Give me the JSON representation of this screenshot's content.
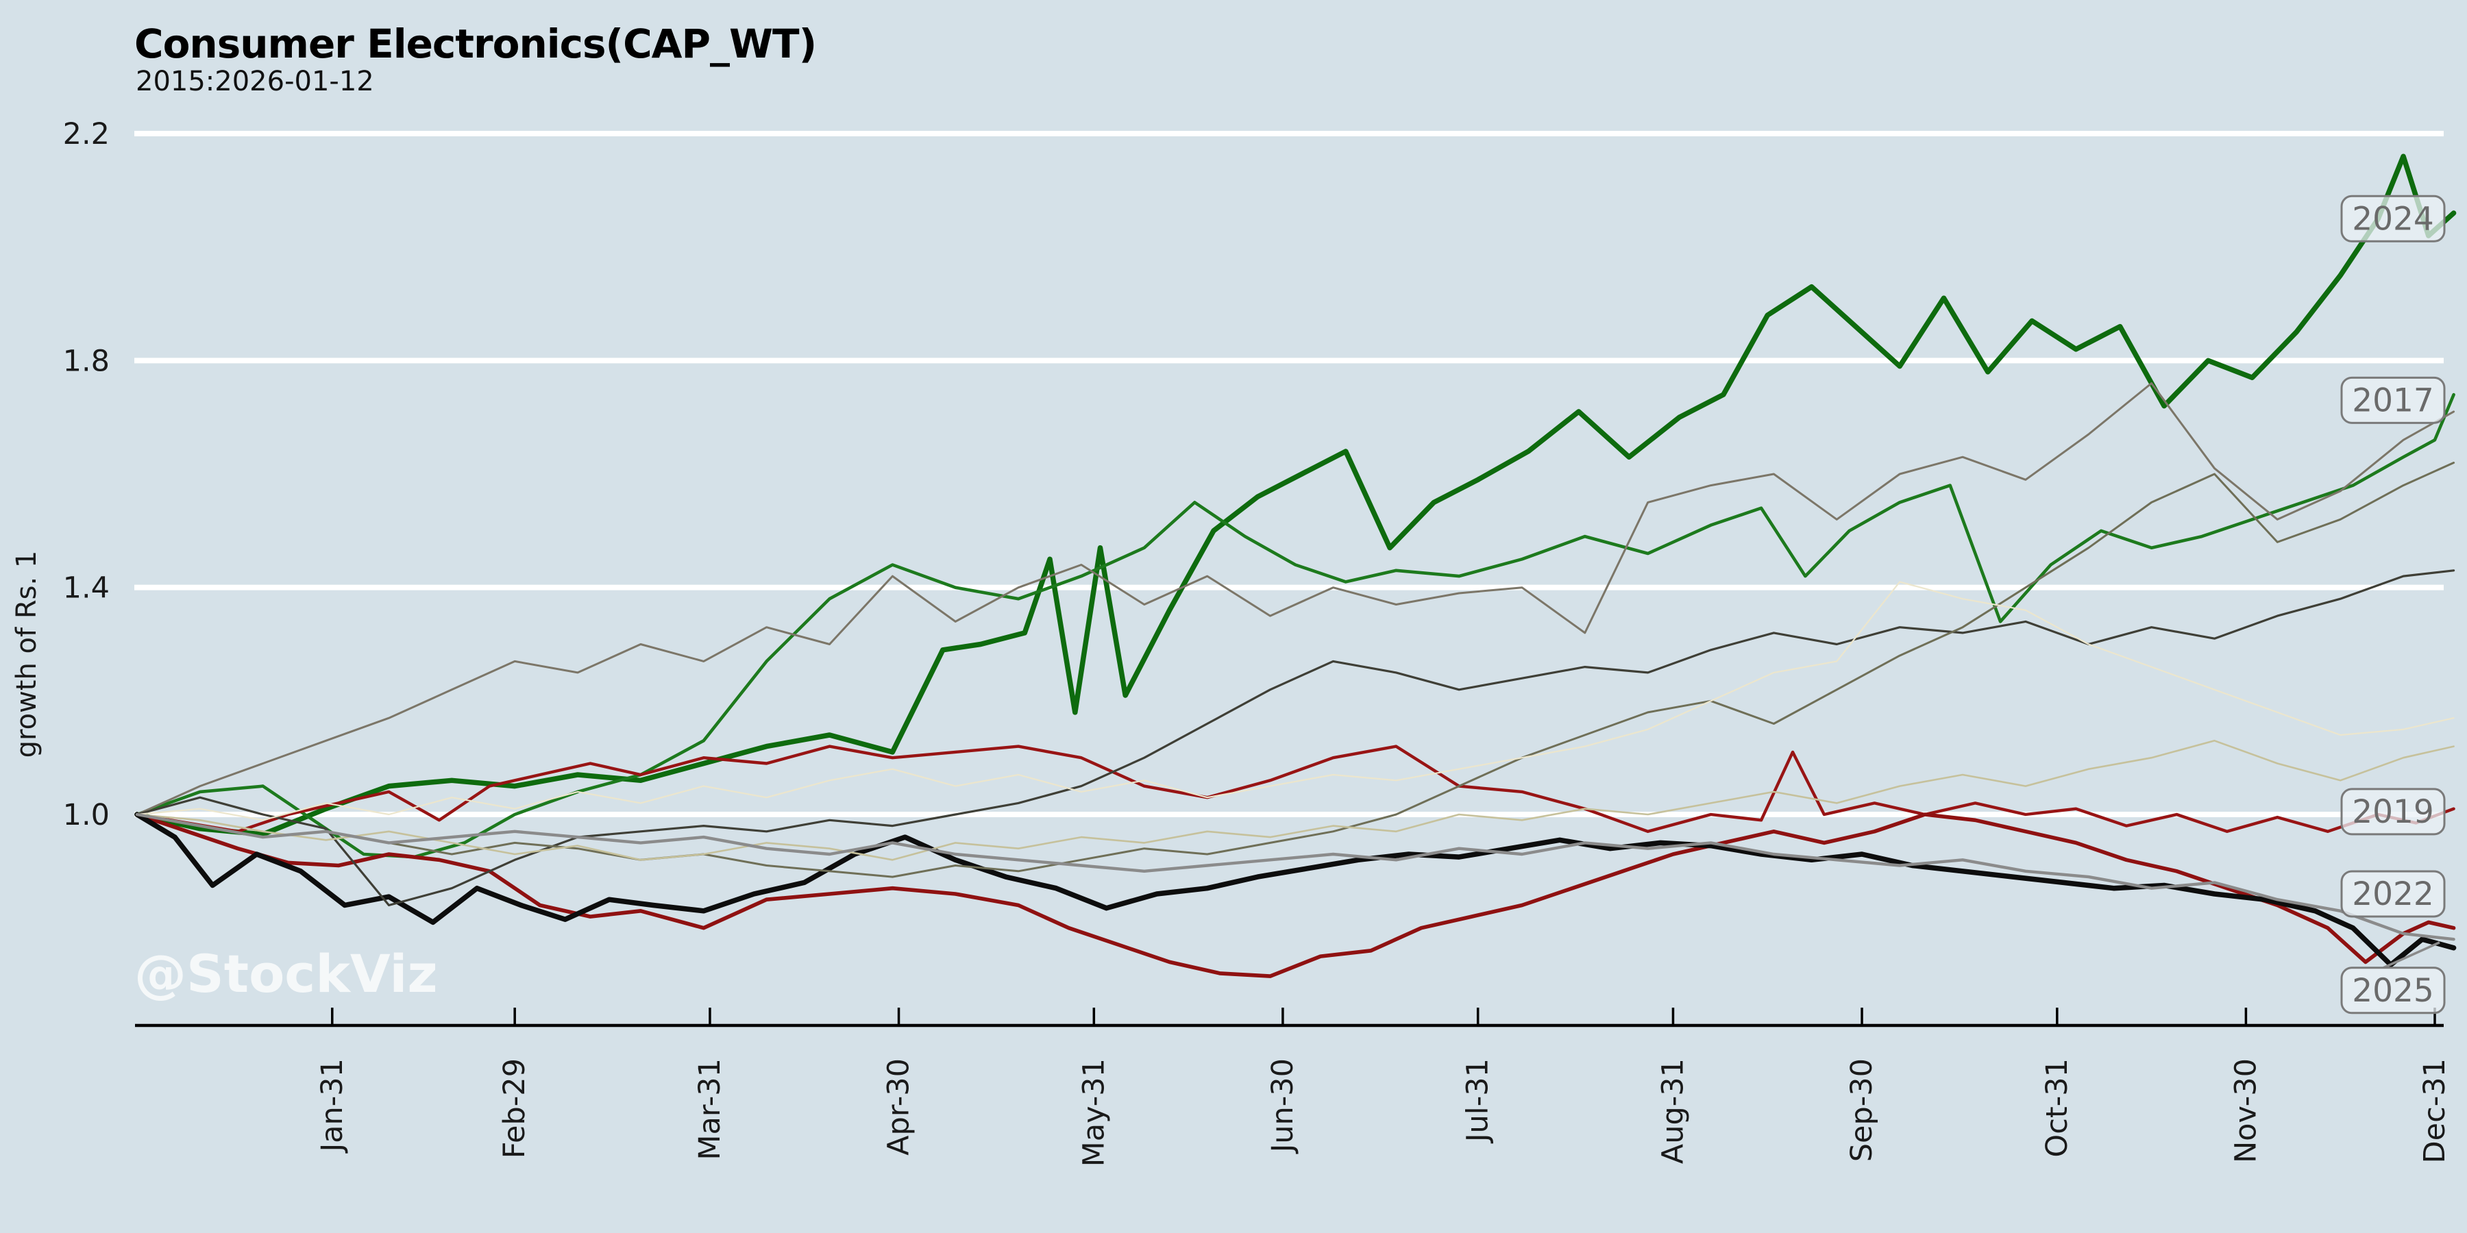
{
  "header": {
    "title": "Consumer Electronics(CAP_WT)",
    "subtitle": "2015:2026-01-12"
  },
  "watermark": "@StockViz",
  "colors": {
    "background": "#d5e1e8",
    "gridline": "#ffffff",
    "axis": "#000000",
    "title_text": "#000000",
    "tick_text": "#1a1a1a",
    "year_label_text": "#6a6a6a",
    "year_label_border": "#7a7a7a",
    "year_label_fill": "rgba(233,240,245,0.75)",
    "watermark_text": "#ffffff",
    "green_2024": "#0e6b0e",
    "green_2017": "#1d7a1d",
    "red_2019": "#981414",
    "red_2022": "#8f1111",
    "black_2025": "#0d0d0d"
  },
  "chart_data": {
    "type": "line",
    "title": "Consumer Electronics(CAP_WT)",
    "subtitle": "2015:2026-01-12",
    "xlabel": "",
    "ylabel": "growth of Rs. 1",
    "x_unit": "day-of-year",
    "ylim": [
      0.63,
      2.23
    ],
    "grid": "horizontal-white",
    "legend_position": "right-edge-labels",
    "y_ticks": [
      {
        "v": 2.2,
        "label": "2.2"
      },
      {
        "v": 1.8,
        "label": "1.8"
      },
      {
        "v": 1.4,
        "label": "1.4"
      },
      {
        "v": 1.0,
        "label": "1.0"
      }
    ],
    "x_ticks": [
      {
        "day": 31,
        "label": "Jan-31"
      },
      {
        "day": 60,
        "label": "Feb-29"
      },
      {
        "day": 91,
        "label": "Mar-31"
      },
      {
        "day": 121,
        "label": "Apr-30"
      },
      {
        "day": 152,
        "label": "May-31"
      },
      {
        "day": 182,
        "label": "Jun-30"
      },
      {
        "day": 213,
        "label": "Jul-31"
      },
      {
        "day": 244,
        "label": "Aug-31"
      },
      {
        "day": 274,
        "label": "Sep-30"
      },
      {
        "day": 305,
        "label": "Oct-31"
      },
      {
        "day": 335,
        "label": "Nov-30"
      },
      {
        "day": 365,
        "label": "Dec-31"
      }
    ],
    "series": [
      {
        "id": "2024",
        "label": "2024",
        "color": "#0e6b0e",
        "width": 7.5,
        "end_value": 2.06,
        "label_v": 2.05,
        "d": [
          0,
          10,
          20,
          30,
          40,
          50,
          60,
          70,
          80,
          90,
          100,
          110,
          120,
          128,
          134,
          141,
          145,
          149,
          153,
          157,
          164,
          171,
          178,
          185,
          192,
          199,
          206,
          213,
          221,
          229,
          237,
          245,
          252,
          259,
          266,
          273,
          280,
          287,
          294,
          301,
          308,
          315,
          322,
          329,
          336,
          343,
          350,
          356,
          360,
          364,
          368
        ],
        "v": [
          1.0,
          0.975,
          0.965,
          1.01,
          1.05,
          1.06,
          1.05,
          1.07,
          1.06,
          1.09,
          1.12,
          1.14,
          1.11,
          1.29,
          1.3,
          1.32,
          1.45,
          1.18,
          1.47,
          1.21,
          1.36,
          1.5,
          1.56,
          1.6,
          1.64,
          1.47,
          1.55,
          1.59,
          1.64,
          1.71,
          1.63,
          1.7,
          1.74,
          1.88,
          1.93,
          1.86,
          1.79,
          1.91,
          1.78,
          1.87,
          1.82,
          1.86,
          1.72,
          1.8,
          1.77,
          1.85,
          1.95,
          2.05,
          2.16,
          2.02,
          2.06
        ]
      },
      {
        "id": "2017",
        "label": "2017",
        "color": "#1d7a1d",
        "width": 4.6,
        "end_value": 1.74,
        "label_v": 1.73,
        "d": [
          0,
          10,
          20,
          28,
          36,
          44,
          52,
          60,
          70,
          80,
          90,
          100,
          110,
          120,
          130,
          140,
          150,
          160,
          168,
          176,
          184,
          192,
          200,
          210,
          220,
          230,
          240,
          250,
          258,
          265,
          272,
          280,
          288,
          296,
          304,
          312,
          320,
          328,
          336,
          344,
          352,
          360,
          365,
          368
        ],
        "v": [
          1.0,
          1.04,
          1.05,
          0.99,
          0.93,
          0.925,
          0.95,
          1.0,
          1.04,
          1.07,
          1.13,
          1.27,
          1.38,
          1.44,
          1.4,
          1.38,
          1.42,
          1.47,
          1.55,
          1.49,
          1.44,
          1.41,
          1.43,
          1.42,
          1.45,
          1.49,
          1.46,
          1.51,
          1.54,
          1.42,
          1.5,
          1.55,
          1.58,
          1.34,
          1.44,
          1.5,
          1.47,
          1.49,
          1.52,
          1.55,
          1.58,
          1.63,
          1.66,
          1.74
        ]
      },
      {
        "id": "2019",
        "label": "2019",
        "color": "#981414",
        "width": 4.4,
        "end_value": 1.01,
        "label_v": 1.005,
        "d": [
          0,
          8,
          16,
          24,
          32,
          40,
          48,
          56,
          64,
          72,
          80,
          90,
          100,
          110,
          120,
          130,
          140,
          150,
          160,
          170,
          180,
          190,
          200,
          210,
          220,
          230,
          240,
          250,
          258,
          263,
          268,
          276,
          284,
          292,
          300,
          308,
          316,
          324,
          332,
          340,
          348,
          356,
          362,
          368
        ],
        "v": [
          1.0,
          0.985,
          0.97,
          1.0,
          1.02,
          1.04,
          0.99,
          1.05,
          1.07,
          1.09,
          1.07,
          1.1,
          1.09,
          1.12,
          1.1,
          1.11,
          1.12,
          1.1,
          1.05,
          1.03,
          1.06,
          1.1,
          1.12,
          1.05,
          1.04,
          1.01,
          0.97,
          1.0,
          0.99,
          1.11,
          1.0,
          1.02,
          1.0,
          1.02,
          1.0,
          1.01,
          0.98,
          1.0,
          0.97,
          0.995,
          0.97,
          1.0,
          0.985,
          1.01
        ]
      },
      {
        "id": "2022",
        "label": "2022",
        "color": "#8f1111",
        "width": 5.6,
        "end_value": 0.8,
        "label_v": 0.86,
        "d": [
          0,
          8,
          16,
          24,
          32,
          40,
          48,
          56,
          64,
          72,
          80,
          90,
          100,
          110,
          120,
          130,
          140,
          148,
          156,
          164,
          172,
          180,
          188,
          196,
          204,
          212,
          220,
          228,
          236,
          244,
          252,
          260,
          268,
          276,
          284,
          292,
          300,
          308,
          316,
          324,
          332,
          340,
          348,
          354,
          360,
          364,
          368
        ],
        "v": [
          1.0,
          0.97,
          0.94,
          0.915,
          0.91,
          0.93,
          0.92,
          0.9,
          0.84,
          0.82,
          0.83,
          0.8,
          0.85,
          0.86,
          0.87,
          0.86,
          0.84,
          0.8,
          0.77,
          0.74,
          0.72,
          0.715,
          0.75,
          0.76,
          0.8,
          0.82,
          0.84,
          0.87,
          0.9,
          0.93,
          0.95,
          0.97,
          0.95,
          0.97,
          1.0,
          0.99,
          0.97,
          0.95,
          0.92,
          0.9,
          0.87,
          0.84,
          0.8,
          0.74,
          0.79,
          0.81,
          0.8
        ]
      },
      {
        "id": "2025",
        "label": "2025",
        "color": "#0d0d0d",
        "width": 7.5,
        "end_value": 0.765,
        "label_v": 0.69,
        "connector": true,
        "d": [
          0,
          6,
          12,
          19,
          26,
          33,
          40,
          47,
          54,
          61,
          68,
          75,
          82,
          90,
          98,
          106,
          114,
          122,
          130,
          138,
          146,
          154,
          162,
          170,
          178,
          186,
          194,
          202,
          210,
          218,
          226,
          234,
          242,
          250,
          258,
          266,
          274,
          282,
          290,
          298,
          306,
          314,
          322,
          330,
          338,
          346,
          352,
          358,
          363,
          368
        ],
        "v": [
          1.0,
          0.96,
          0.875,
          0.93,
          0.9,
          0.84,
          0.855,
          0.81,
          0.87,
          0.84,
          0.815,
          0.85,
          0.84,
          0.83,
          0.86,
          0.88,
          0.93,
          0.96,
          0.92,
          0.89,
          0.87,
          0.835,
          0.86,
          0.87,
          0.89,
          0.905,
          0.92,
          0.93,
          0.925,
          0.94,
          0.955,
          0.94,
          0.95,
          0.945,
          0.93,
          0.92,
          0.93,
          0.91,
          0.9,
          0.89,
          0.88,
          0.87,
          0.875,
          0.86,
          0.85,
          0.83,
          0.8,
          0.735,
          0.78,
          0.765
        ]
      },
      {
        "id": "unlabeled-a",
        "label": null,
        "color": "#7c7668",
        "width": 3.0,
        "end_value": 1.71,
        "d": [
          0,
          10,
          20,
          30,
          40,
          50,
          60,
          70,
          80,
          90,
          100,
          110,
          120,
          130,
          140,
          150,
          160,
          170,
          180,
          190,
          200,
          210,
          220,
          230,
          240,
          250,
          260,
          270,
          280,
          290,
          300,
          310,
          320,
          330,
          340,
          350,
          360,
          368
        ],
        "v": [
          1.0,
          1.05,
          1.09,
          1.13,
          1.17,
          1.22,
          1.27,
          1.25,
          1.3,
          1.27,
          1.33,
          1.3,
          1.42,
          1.34,
          1.4,
          1.44,
          1.37,
          1.42,
          1.35,
          1.4,
          1.37,
          1.39,
          1.4,
          1.32,
          1.55,
          1.58,
          1.6,
          1.52,
          1.6,
          1.63,
          1.59,
          1.67,
          1.76,
          1.61,
          1.52,
          1.57,
          1.66,
          1.71
        ]
      },
      {
        "id": "unlabeled-b",
        "label": null,
        "color": "#3f3f36",
        "width": 3.2,
        "end_value": 1.43,
        "d": [
          0,
          10,
          20,
          30,
          40,
          50,
          60,
          70,
          80,
          90,
          100,
          110,
          120,
          130,
          140,
          150,
          160,
          170,
          180,
          190,
          200,
          210,
          220,
          230,
          240,
          250,
          260,
          270,
          280,
          290,
          300,
          310,
          320,
          330,
          340,
          350,
          360,
          368
        ],
        "v": [
          1.0,
          1.03,
          1.0,
          0.975,
          0.84,
          0.87,
          0.92,
          0.96,
          0.97,
          0.98,
          0.97,
          0.99,
          0.98,
          1.0,
          1.02,
          1.05,
          1.1,
          1.16,
          1.22,
          1.27,
          1.25,
          1.22,
          1.24,
          1.26,
          1.25,
          1.29,
          1.32,
          1.3,
          1.33,
          1.32,
          1.34,
          1.3,
          1.33,
          1.31,
          1.35,
          1.38,
          1.42,
          1.43
        ]
      },
      {
        "id": "unlabeled-c",
        "label": null,
        "color": "#6f6f57",
        "width": 3.0,
        "end_value": 1.62,
        "d": [
          0,
          10,
          20,
          30,
          40,
          50,
          60,
          70,
          80,
          90,
          100,
          110,
          120,
          130,
          140,
          150,
          160,
          170,
          180,
          190,
          200,
          210,
          220,
          230,
          240,
          250,
          260,
          270,
          280,
          290,
          300,
          310,
          320,
          330,
          340,
          350,
          360,
          368
        ],
        "v": [
          1.0,
          0.98,
          0.96,
          0.97,
          0.95,
          0.93,
          0.95,
          0.94,
          0.92,
          0.93,
          0.91,
          0.9,
          0.89,
          0.91,
          0.9,
          0.92,
          0.94,
          0.93,
          0.95,
          0.97,
          1.0,
          1.05,
          1.1,
          1.14,
          1.18,
          1.2,
          1.16,
          1.22,
          1.28,
          1.33,
          1.4,
          1.47,
          1.55,
          1.6,
          1.48,
          1.52,
          1.58,
          1.62
        ]
      },
      {
        "id": "unlabeled-d",
        "label": null,
        "color": "#c6c19b",
        "width": 2.6,
        "end_value": 1.12,
        "d": [
          0,
          10,
          20,
          30,
          40,
          50,
          60,
          70,
          80,
          90,
          100,
          110,
          120,
          130,
          140,
          150,
          160,
          170,
          180,
          190,
          200,
          210,
          220,
          230,
          240,
          250,
          260,
          270,
          280,
          290,
          300,
          310,
          320,
          330,
          340,
          350,
          360,
          368
        ],
        "v": [
          1.0,
          0.99,
          0.97,
          0.955,
          0.97,
          0.95,
          0.93,
          0.945,
          0.92,
          0.93,
          0.95,
          0.94,
          0.92,
          0.95,
          0.94,
          0.96,
          0.95,
          0.97,
          0.96,
          0.98,
          0.97,
          1.0,
          0.99,
          1.01,
          1.0,
          1.02,
          1.04,
          1.02,
          1.05,
          1.07,
          1.05,
          1.08,
          1.1,
          1.13,
          1.09,
          1.06,
          1.1,
          1.12
        ]
      },
      {
        "id": "unlabeled-e",
        "label": null,
        "color": "#ece6cd",
        "width": 2.2,
        "end_value": 1.17,
        "d": [
          0,
          10,
          20,
          30,
          40,
          50,
          60,
          70,
          80,
          90,
          100,
          110,
          120,
          130,
          140,
          150,
          160,
          170,
          180,
          190,
          200,
          210,
          220,
          230,
          240,
          250,
          260,
          270,
          280,
          290,
          300,
          310,
          320,
          330,
          340,
          350,
          360,
          368
        ],
        "v": [
          1.0,
          1.01,
          0.99,
          1.02,
          1.0,
          1.03,
          1.01,
          1.04,
          1.02,
          1.05,
          1.03,
          1.06,
          1.08,
          1.05,
          1.07,
          1.04,
          1.06,
          1.03,
          1.05,
          1.07,
          1.06,
          1.08,
          1.1,
          1.12,
          1.15,
          1.2,
          1.25,
          1.27,
          1.41,
          1.38,
          1.36,
          1.3,
          1.26,
          1.22,
          1.18,
          1.14,
          1.15,
          1.17
        ]
      },
      {
        "id": "unlabeled-f",
        "label": null,
        "color": "#8b8b8b",
        "width": 4.4,
        "end_value": 0.78,
        "d": [
          0,
          10,
          20,
          30,
          40,
          50,
          60,
          70,
          80,
          90,
          100,
          110,
          120,
          130,
          140,
          150,
          160,
          170,
          180,
          190,
          200,
          210,
          220,
          230,
          240,
          250,
          260,
          270,
          280,
          290,
          300,
          310,
          320,
          330,
          340,
          350,
          360,
          368
        ],
        "v": [
          1.0,
          0.98,
          0.96,
          0.97,
          0.95,
          0.96,
          0.97,
          0.96,
          0.95,
          0.96,
          0.94,
          0.93,
          0.95,
          0.93,
          0.92,
          0.91,
          0.9,
          0.91,
          0.92,
          0.93,
          0.92,
          0.94,
          0.93,
          0.95,
          0.94,
          0.95,
          0.93,
          0.92,
          0.91,
          0.92,
          0.9,
          0.89,
          0.87,
          0.88,
          0.85,
          0.83,
          0.79,
          0.78
        ]
      }
    ]
  },
  "layout_values": {
    "year_label_texts": [
      "2024",
      "2017",
      "2019",
      "2022",
      "2025"
    ]
  }
}
